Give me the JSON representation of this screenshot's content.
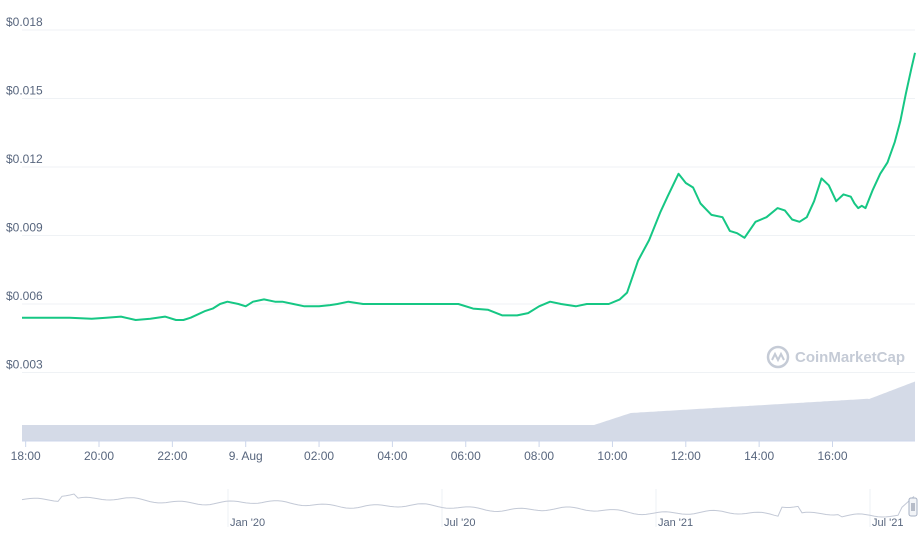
{
  "chart_data": {
    "type": "line",
    "title": "",
    "xlabel": "",
    "ylabel": "",
    "watermark": "CoinMarketCap",
    "line_color": "#16c784",
    "volume_color": "#cfd6e4",
    "grid": true,
    "ylim": [
      0,
      0.018
    ],
    "y_ticks": [
      "$0.003",
      "$0.006",
      "$0.009",
      "$0.012",
      "$0.015",
      "$0.018"
    ],
    "y_tick_values": [
      0.003,
      0.006,
      0.009,
      0.012,
      0.015,
      0.018
    ],
    "x_ticks": [
      "18:00",
      "20:00",
      "22:00",
      "9. Aug",
      "02:00",
      "04:00",
      "06:00",
      "08:00",
      "10:00",
      "12:00",
      "14:00",
      "16:00"
    ],
    "x_tick_hours": [
      0,
      2,
      4,
      6,
      8,
      10,
      12,
      14,
      16,
      18,
      20,
      22
    ],
    "series": [
      {
        "x": [
          -0.1,
          0.3,
          0.8,
          1.2,
          1.8,
          2.2,
          2.6,
          3.0,
          3.4,
          3.8,
          4.1,
          4.3,
          4.5,
          4.7,
          4.9,
          5.1,
          5.3,
          5.5,
          5.8,
          6.0,
          6.2,
          6.5,
          6.8,
          7.0,
          7.3,
          7.6,
          8.0,
          8.3,
          8.5,
          8.8,
          9.2,
          9.5,
          10.0,
          10.5,
          11.0,
          11.4,
          11.8,
          12.2,
          12.6,
          13.0,
          13.4,
          13.7,
          14.0,
          14.3,
          14.6,
          15.0,
          15.3,
          15.6,
          15.9,
          16.2,
          16.4,
          16.7,
          17.0,
          17.3,
          17.5,
          17.8,
          18.0,
          18.2,
          18.4,
          18.7,
          19.0,
          19.2,
          19.4,
          19.6,
          19.9,
          20.2,
          20.5,
          20.7,
          20.9,
          21.1,
          21.3,
          21.5,
          21.7,
          21.9,
          22.1,
          22.3,
          22.5,
          22.6,
          22.7,
          22.8,
          22.9,
          23.1,
          23.3,
          23.5,
          23.7,
          23.85,
          24.0,
          24.15,
          24.25
        ],
        "values": [
          0.0054,
          0.0054,
          0.0054,
          0.0054,
          0.00535,
          0.0054,
          0.00545,
          0.0053,
          0.00535,
          0.00545,
          0.0053,
          0.0053,
          0.0054,
          0.00555,
          0.0057,
          0.0058,
          0.006,
          0.0061,
          0.006,
          0.0059,
          0.0061,
          0.0062,
          0.0061,
          0.0061,
          0.006,
          0.0059,
          0.0059,
          0.00595,
          0.006,
          0.0061,
          0.006,
          0.006,
          0.006,
          0.006,
          0.006,
          0.006,
          0.006,
          0.0058,
          0.00575,
          0.0055,
          0.0055,
          0.0056,
          0.0059,
          0.0061,
          0.006,
          0.0059,
          0.006,
          0.006,
          0.006,
          0.0062,
          0.0065,
          0.0079,
          0.0088,
          0.01,
          0.0107,
          0.0117,
          0.0113,
          0.0111,
          0.0104,
          0.0099,
          0.0098,
          0.0092,
          0.0091,
          0.0089,
          0.0096,
          0.0098,
          0.0102,
          0.0101,
          0.0097,
          0.0096,
          0.0098,
          0.0105,
          0.0115,
          0.0112,
          0.0105,
          0.0108,
          0.0107,
          0.0104,
          0.0102,
          0.0103,
          0.0102,
          0.011,
          0.0117,
          0.0122,
          0.0131,
          0.014,
          0.0152,
          0.0163,
          0.017
        ]
      }
    ],
    "navigator": {
      "x_ticks": [
        "Jan '20",
        "Jul '20",
        "Jan '21",
        "Jul '21"
      ],
      "line_color": "#c3c9d6"
    }
  }
}
